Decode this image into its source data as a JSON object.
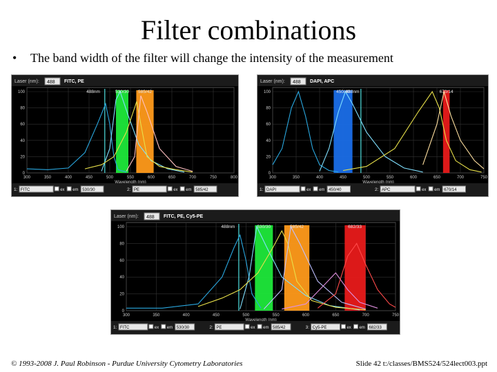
{
  "slide": {
    "title": "Filter combinations",
    "bullet": "The band width of the filter will change the intensity of the measurement",
    "footer_left": "© 1993-2008 J. Paul Robinson - Purdue University Cytometry Laboratories",
    "footer_right": "Slide 42 t:/classes/BMS524/524lect003.ppt"
  },
  "panels": [
    {
      "laser_label": "Laser (nm):",
      "laser_value": "488",
      "dyes": "FITC, PE",
      "x_title": "Wavelength (nm)",
      "x_ticks": [
        "300",
        "350",
        "400",
        "450",
        "500",
        "550",
        "600",
        "650",
        "700",
        "750",
        "800"
      ],
      "y_ticks": [
        "0",
        "20",
        "40",
        "60",
        "80",
        "100"
      ],
      "x_range": [
        300,
        800
      ],
      "band_labels": [
        {
          "text": "530/30",
          "x": 530
        },
        {
          "text": "585/42",
          "x": 585
        },
        {
          "text": "488nm",
          "x": 460
        }
      ],
      "bands": [
        {
          "color": "#1ee83a",
          "x0": 515,
          "x1": 545
        },
        {
          "color": "#ff9a1a",
          "x0": 564,
          "x1": 606
        }
      ],
      "laser_lines": [
        {
          "x": 488,
          "color": "#4fe0e0"
        }
      ],
      "curves": [
        {
          "color": "#2aa8e0",
          "points": [
            [
              300,
              5
            ],
            [
              350,
              4
            ],
            [
              400,
              6
            ],
            [
              440,
              25
            ],
            [
              470,
              60
            ],
            [
              490,
              85
            ],
            [
              500,
              60
            ],
            [
              510,
              20
            ],
            [
              520,
              4
            ],
            [
              540,
              1
            ]
          ]
        },
        {
          "color": "#80e0ff",
          "points": [
            [
              480,
              2
            ],
            [
              500,
              30
            ],
            [
              515,
              90
            ],
            [
              525,
              100
            ],
            [
              545,
              70
            ],
            [
              570,
              35
            ],
            [
              600,
              15
            ],
            [
              640,
              5
            ],
            [
              680,
              1
            ]
          ]
        },
        {
          "color": "#e8e04a",
          "points": [
            [
              440,
              5
            ],
            [
              480,
              10
            ],
            [
              510,
              20
            ],
            [
              540,
              50
            ],
            [
              560,
              80
            ],
            [
              565,
              88
            ],
            [
              575,
              60
            ],
            [
              590,
              20
            ],
            [
              620,
              8
            ],
            [
              660,
              4
            ],
            [
              700,
              1
            ]
          ]
        },
        {
          "color": "#ffc0c0",
          "points": [
            [
              540,
              2
            ],
            [
              560,
              20
            ],
            [
              575,
              95
            ],
            [
              590,
              75
            ],
            [
              620,
              30
            ],
            [
              660,
              8
            ],
            [
              700,
              2
            ]
          ]
        }
      ],
      "footer": {
        "row1_label": "1:",
        "row1_dye": "FITC",
        "ex": "ex",
        "em": "em",
        "filter1": "530/30",
        "row2_label": "2:",
        "row2_dye": "PE",
        "filter2": "585/42"
      }
    },
    {
      "laser_label": "Laser (nm):",
      "laser_value": "488",
      "dyes": "DAPI, APC",
      "x_title": "Wavelength (nm)",
      "x_ticks": [
        "300",
        "350",
        "400",
        "450",
        "500",
        "550",
        "600",
        "650",
        "700",
        "750"
      ],
      "y_ticks": [
        "0",
        "20",
        "40",
        "60",
        "80",
        "100"
      ],
      "x_range": [
        300,
        750
      ],
      "band_labels": [
        {
          "text": "450/40",
          "x": 450
        },
        {
          "text": "670/14",
          "x": 670
        },
        {
          "text": "488nm",
          "x": 470
        }
      ],
      "bands": [
        {
          "color": "#1a6ee8",
          "x0": 430,
          "x1": 470
        },
        {
          "color": "#e81a1a",
          "x0": 663,
          "x1": 677
        }
      ],
      "laser_lines": [
        {
          "x": 488,
          "color": "#4fe0e0"
        }
      ],
      "curves": [
        {
          "color": "#2aa8e0",
          "points": [
            [
              300,
              10
            ],
            [
              320,
              30
            ],
            [
              340,
              80
            ],
            [
              355,
              100
            ],
            [
              370,
              70
            ],
            [
              385,
              30
            ],
            [
              400,
              10
            ],
            [
              420,
              3
            ],
            [
              440,
              1
            ]
          ]
        },
        {
          "color": "#80e0ff",
          "points": [
            [
              400,
              2
            ],
            [
              420,
              30
            ],
            [
              440,
              75
            ],
            [
              455,
              100
            ],
            [
              470,
              85
            ],
            [
              500,
              50
            ],
            [
              540,
              20
            ],
            [
              580,
              6
            ],
            [
              620,
              1
            ]
          ]
        },
        {
          "color": "#e8e04a",
          "points": [
            [
              450,
              3
            ],
            [
              500,
              8
            ],
            [
              560,
              30
            ],
            [
              610,
              75
            ],
            [
              640,
              100
            ],
            [
              655,
              80
            ],
            [
              670,
              40
            ],
            [
              690,
              15
            ],
            [
              720,
              4
            ],
            [
              745,
              1
            ]
          ]
        },
        {
          "color": "#ffe0a0",
          "points": [
            [
              620,
              10
            ],
            [
              650,
              60
            ],
            [
              665,
              100
            ],
            [
              680,
              70
            ],
            [
              700,
              40
            ],
            [
              730,
              15
            ],
            [
              750,
              5
            ]
          ]
        }
      ],
      "footer": {
        "row1_label": "1:",
        "row1_dye": "DAPI",
        "ex": "ex",
        "em": "em",
        "filter1": "450/40",
        "row2_label": "2:",
        "row2_dye": "APC",
        "filter2": "670/14"
      }
    },
    {
      "laser_label": "Laser (nm):",
      "laser_value": "488",
      "dyes": "FITC, PE, Cy5-PE",
      "x_title": "Wavelength (nm)",
      "x_ticks": [
        "300",
        "350",
        "400",
        "450",
        "500",
        "550",
        "600",
        "650",
        "700",
        "750"
      ],
      "y_ticks": [
        "0",
        "20",
        "40",
        "60",
        "80",
        "100"
      ],
      "x_range": [
        300,
        750
      ],
      "band_labels": [
        {
          "text": "530/30",
          "x": 530
        },
        {
          "text": "585/42",
          "x": 585
        },
        {
          "text": "682/33",
          "x": 682
        },
        {
          "text": "488nm",
          "x": 470
        }
      ],
      "bands": [
        {
          "color": "#1ee83a",
          "x0": 515,
          "x1": 545
        },
        {
          "color": "#ff9a1a",
          "x0": 564,
          "x1": 606
        },
        {
          "color": "#e81a1a",
          "x0": 665,
          "x1": 700
        }
      ],
      "laser_lines": [
        {
          "x": 488,
          "color": "#4fe0e0"
        }
      ],
      "curves": [
        {
          "color": "#2aa8e0",
          "points": [
            [
              300,
              3
            ],
            [
              360,
              3
            ],
            [
              420,
              8
            ],
            [
              460,
              40
            ],
            [
              480,
              75
            ],
            [
              490,
              90
            ],
            [
              500,
              60
            ],
            [
              510,
              20
            ],
            [
              525,
              3
            ]
          ]
        },
        {
          "color": "#80e0ff",
          "points": [
            [
              490,
              2
            ],
            [
              505,
              40
            ],
            [
              518,
              100
            ],
            [
              535,
              75
            ],
            [
              560,
              40
            ],
            [
              600,
              18
            ],
            [
              640,
              6
            ],
            [
              690,
              1
            ]
          ]
        },
        {
          "color": "#e8e04a",
          "points": [
            [
              420,
              5
            ],
            [
              460,
              15
            ],
            [
              490,
              25
            ],
            [
              520,
              45
            ],
            [
              545,
              75
            ],
            [
              560,
              95
            ],
            [
              570,
              80
            ],
            [
              585,
              35
            ],
            [
              610,
              12
            ],
            [
              650,
              4
            ],
            [
              700,
              1
            ]
          ]
        },
        {
          "color": "#c0c0ff",
          "points": [
            [
              530,
              2
            ],
            [
              560,
              25
            ],
            [
              575,
              100
            ],
            [
              590,
              80
            ],
            [
              620,
              35
            ],
            [
              660,
              10
            ],
            [
              700,
              2
            ]
          ]
        },
        {
          "color": "#e090e0",
          "points": [
            [
              560,
              2
            ],
            [
              600,
              8
            ],
            [
              630,
              30
            ],
            [
              650,
              45
            ],
            [
              670,
              25
            ],
            [
              690,
              10
            ],
            [
              720,
              3
            ]
          ]
        },
        {
          "color": "#ff4a4a",
          "points": [
            [
              620,
              3
            ],
            [
              650,
              20
            ],
            [
              670,
              65
            ],
            [
              685,
              80
            ],
            [
              700,
              55
            ],
            [
              720,
              25
            ],
            [
              740,
              8
            ],
            [
              750,
              4
            ]
          ]
        }
      ],
      "footer": {
        "row1_label": "1:",
        "row1_dye": "FITC",
        "ex": "ex",
        "em": "em",
        "filter1": "530/30",
        "row2_label": "2:",
        "row2_dye": "PE",
        "filter2": "585/42",
        "row3_label": "3:",
        "row3_dye": "Cy5-PE",
        "filter3": "682/33"
      }
    }
  ]
}
